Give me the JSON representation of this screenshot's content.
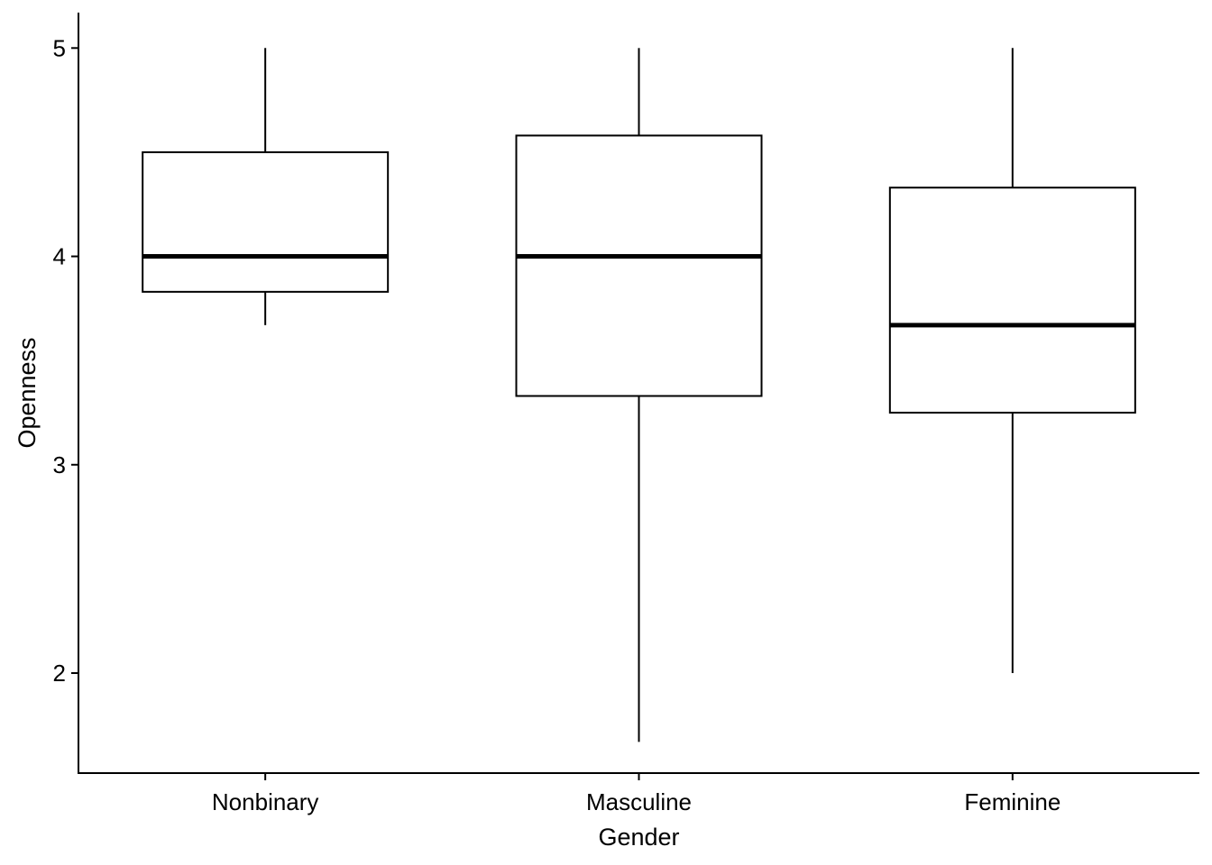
{
  "chart_data": {
    "type": "boxplot",
    "xlabel": "Gender",
    "ylabel": "Openness",
    "categories": [
      "Nonbinary",
      "Masculine",
      "Feminine"
    ],
    "ylim": [
      1.52,
      5.17
    ],
    "yticks": [
      2,
      3,
      4,
      5
    ],
    "grid": false,
    "legend": "none",
    "boxes": [
      {
        "category": "Nonbinary",
        "whisker_low": 3.67,
        "q1": 3.83,
        "median": 4.0,
        "q3": 4.5,
        "whisker_high": 5.0
      },
      {
        "category": "Masculine",
        "whisker_low": 1.67,
        "q1": 3.33,
        "median": 4.0,
        "q3": 4.58,
        "whisker_high": 5.0
      },
      {
        "category": "Feminine",
        "whisker_low": 2.0,
        "q1": 3.25,
        "median": 3.67,
        "q3": 4.33,
        "whisker_high": 5.0
      }
    ],
    "colors": {
      "box_fill": "#ffffff",
      "stroke": "#000000"
    }
  }
}
